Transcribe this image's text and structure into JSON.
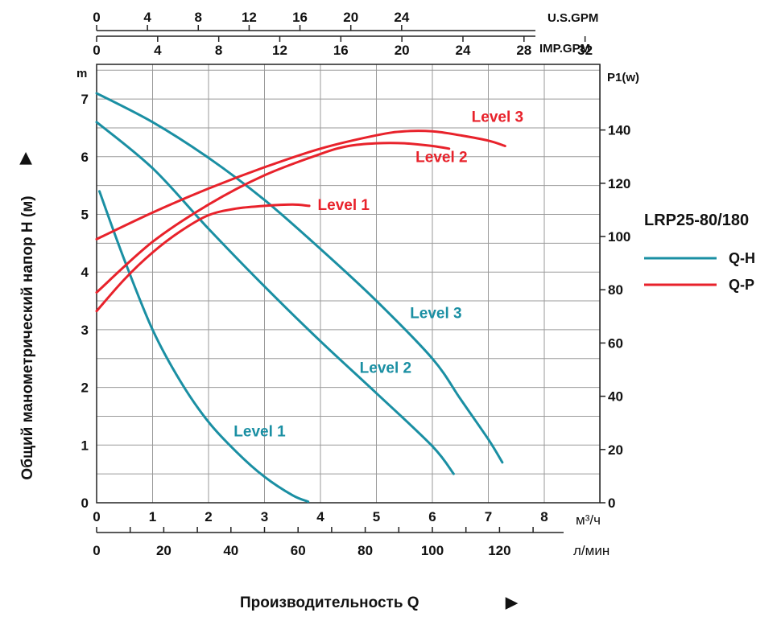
{
  "chart_data": {
    "type": "line",
    "title": "LRP25-80/180",
    "xlabel": "Производительность Q",
    "ylabel_left": "Общий манометрический напор H (м)",
    "ylabel_left_unit": "m",
    "ylabel_right": "P1(w)",
    "xlim": [
      0,
      9
    ],
    "ylim_left": [
      0,
      7.5
    ],
    "ylim_right": [
      0,
      160
    ],
    "arrow_glyph": "▶",
    "x_axes": {
      "us_gpm": {
        "unit": "U.S.GPM",
        "ticks": [
          "0",
          "4",
          "8",
          "12",
          "16",
          "20",
          "24"
        ]
      },
      "imp_gpm": {
        "unit": "IMP.GPM",
        "ticks": [
          "0",
          "4",
          "8",
          "12",
          "16",
          "20",
          "24",
          "28",
          "32"
        ]
      },
      "m3h": {
        "unit": "м³/ч",
        "ticks": [
          "0",
          "1",
          "2",
          "3",
          "4",
          "5",
          "6",
          "7",
          "8"
        ]
      },
      "lmin": {
        "unit": "л/мин",
        "ticks": [
          "0",
          "20",
          "40",
          "60",
          "80",
          "100",
          "120"
        ]
      }
    },
    "y_left_ticks": [
      "0",
      "1",
      "2",
      "3",
      "4",
      "5",
      "6",
      "7"
    ],
    "y_right_ticks": [
      "0",
      "20",
      "40",
      "60",
      "80",
      "100",
      "120",
      "140"
    ],
    "grid": true,
    "legend": {
      "placement": "right",
      "entries": [
        {
          "name": "Q-H",
          "color": "#1a8fa3"
        },
        {
          "name": "Q-P",
          "color": "#e8222b"
        }
      ]
    },
    "series": [
      {
        "name": "Q-H Level 1",
        "axis": "left",
        "label": "Level 1",
        "color": "#1a8fa3",
        "points": [
          [
            0.05,
            5.4
          ],
          [
            0.5,
            4.2
          ],
          [
            1.0,
            3.0
          ],
          [
            1.5,
            2.1
          ],
          [
            2.0,
            1.4
          ],
          [
            2.5,
            0.88
          ],
          [
            3.0,
            0.45
          ],
          [
            3.5,
            0.13
          ],
          [
            3.78,
            0.02
          ]
        ]
      },
      {
        "name": "Q-H Level 2",
        "axis": "left",
        "label": "Level 2",
        "color": "#1a8fa3",
        "points": [
          [
            0.0,
            6.6
          ],
          [
            1.0,
            5.8
          ],
          [
            2.0,
            4.75
          ],
          [
            3.0,
            3.75
          ],
          [
            4.0,
            2.8
          ],
          [
            5.0,
            1.9
          ],
          [
            6.0,
            0.98
          ],
          [
            6.38,
            0.5
          ]
        ]
      },
      {
        "name": "Q-H Level 3",
        "axis": "left",
        "label": "Level 3",
        "color": "#1a8fa3",
        "points": [
          [
            0.0,
            7.1
          ],
          [
            1.0,
            6.6
          ],
          [
            2.0,
            5.98
          ],
          [
            3.0,
            5.25
          ],
          [
            4.0,
            4.4
          ],
          [
            5.0,
            3.5
          ],
          [
            6.0,
            2.5
          ],
          [
            6.5,
            1.8
          ],
          [
            7.0,
            1.1
          ],
          [
            7.25,
            0.7
          ]
        ]
      },
      {
        "name": "Q-P Level 1",
        "axis": "right",
        "label": "Level 1",
        "color": "#e8222b",
        "points": [
          [
            0.0,
            72
          ],
          [
            0.5,
            84
          ],
          [
            1.0,
            94
          ],
          [
            1.5,
            102
          ],
          [
            2.0,
            108
          ],
          [
            2.5,
            110.5
          ],
          [
            3.0,
            111.5
          ],
          [
            3.5,
            112
          ],
          [
            3.8,
            111.5
          ]
        ]
      },
      {
        "name": "Q-P Level 2",
        "axis": "right",
        "label": "Level 2",
        "color": "#e8222b",
        "points": [
          [
            0.0,
            79
          ],
          [
            1.0,
            98
          ],
          [
            2.0,
            112
          ],
          [
            3.0,
            123
          ],
          [
            4.0,
            131
          ],
          [
            4.5,
            134
          ],
          [
            5.0,
            135
          ],
          [
            5.5,
            135
          ],
          [
            6.0,
            134
          ],
          [
            6.3,
            133
          ]
        ]
      },
      {
        "name": "Q-P Level 3",
        "axis": "right",
        "label": "Level 3",
        "color": "#e8222b",
        "points": [
          [
            0.0,
            99
          ],
          [
            1.0,
            109
          ],
          [
            2.0,
            118
          ],
          [
            3.0,
            126
          ],
          [
            4.0,
            133
          ],
          [
            5.0,
            138
          ],
          [
            5.5,
            139.5
          ],
          [
            6.0,
            139.5
          ],
          [
            6.5,
            138
          ],
          [
            7.0,
            136
          ],
          [
            7.3,
            134
          ]
        ]
      }
    ]
  }
}
